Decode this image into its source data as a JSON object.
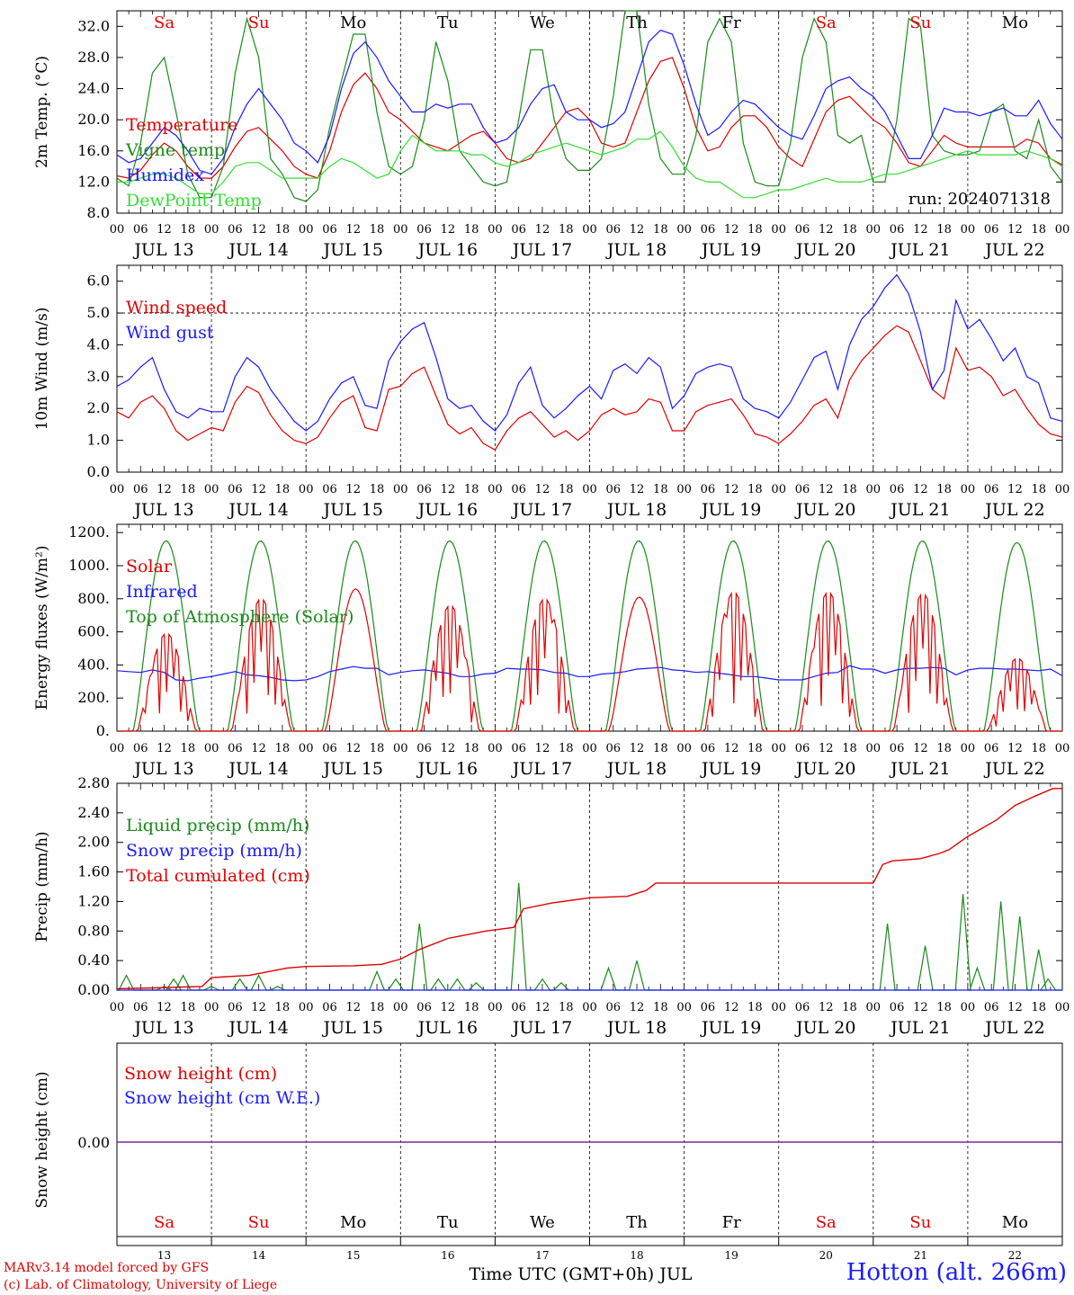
{
  "run_label": "run: 2024071318",
  "footer": {
    "model": "MARv3.14 model forced by GFS",
    "copyright": "(c) Lab. of Climatology, University of Liege",
    "station": "Hotton (alt. 266m)",
    "xlabel": "Time UTC (GMT+0h) JUL"
  },
  "hour_ticks": [
    "00",
    "06",
    "12",
    "18"
  ],
  "dates": [
    "JUL 13",
    "JUL 14",
    "JUL 15",
    "JUL 16",
    "JUL 17",
    "JUL 18",
    "JUL 19",
    "JUL 20",
    "JUL 21",
    "JUL 22"
  ],
  "day_numbers": [
    "13",
    "14",
    "15",
    "16",
    "17",
    "18",
    "19",
    "20",
    "21",
    "22"
  ],
  "weekdays": [
    "Sa",
    "Su",
    "Mo",
    "Tu",
    "We",
    "Th",
    "Fr",
    "Sa",
    "Su",
    "Mo"
  ],
  "weekday_colors": [
    "#e00000",
    "#e00000",
    "#000000",
    "#000000",
    "#000000",
    "#000000",
    "#000000",
    "#e00000",
    "#e00000",
    "#000000"
  ],
  "chart_data": [
    {
      "type": "line",
      "ylabel": "2m Temp. (°C)",
      "ylim": [
        8,
        34
      ],
      "yticks": [
        "8.0",
        "12.0",
        "16.0",
        "20.0",
        "24.0",
        "28.0",
        "32.0"
      ],
      "x": [
        0,
        0.125,
        0.25,
        0.375,
        0.5,
        0.625,
        0.75,
        0.875,
        1,
        1.125,
        1.25,
        1.375,
        1.5,
        1.625,
        1.75,
        1.875,
        2,
        2.125,
        2.25,
        2.375,
        2.5,
        2.625,
        2.75,
        2.875,
        3,
        3.125,
        3.25,
        3.375,
        3.5,
        3.625,
        3.75,
        3.875,
        4,
        4.125,
        4.25,
        4.375,
        4.5,
        4.625,
        4.75,
        4.875,
        5,
        5.125,
        5.25,
        5.375,
        5.5,
        5.625,
        5.75,
        5.875,
        6,
        6.125,
        6.25,
        6.375,
        6.5,
        6.625,
        6.75,
        6.875,
        7,
        7.125,
        7.25,
        7.375,
        7.5,
        7.625,
        7.75,
        7.875,
        8,
        8.125,
        8.25,
        8.375,
        8.5,
        8.625,
        8.75,
        8.875,
        9,
        9.125,
        9.25,
        9.375,
        9.5,
        9.625,
        9.75,
        9.875,
        10
      ],
      "series": [
        {
          "name": "Temperature",
          "color": "#e00000",
          "values": [
            12.8,
            12.5,
            13.5,
            15.5,
            17,
            16,
            14,
            12.5,
            12.5,
            14,
            16.5,
            18.5,
            19,
            17.5,
            16,
            14,
            13,
            12.5,
            16,
            21,
            24.5,
            26,
            24,
            21,
            20,
            18.5,
            17,
            16.5,
            16,
            17,
            18,
            18.5,
            17,
            15,
            14.5,
            15,
            17,
            19,
            21,
            21.5,
            20,
            17,
            16.5,
            17,
            21,
            25,
            27.5,
            28,
            24,
            19,
            16,
            16.5,
            19,
            20.5,
            20.5,
            19,
            16.5,
            15,
            14,
            17.5,
            21,
            22.5,
            23,
            21.5,
            20,
            19,
            17,
            14.5,
            14,
            16,
            18,
            17,
            16.5,
            16.5,
            16.5,
            16.5,
            16.5,
            17.5,
            17,
            15,
            14.2
          ]
        },
        {
          "name": "Vigne temp",
          "color": "#1a8a1a",
          "values": [
            12.5,
            11.5,
            17,
            26,
            28,
            21,
            13,
            10,
            10,
            14,
            26,
            33,
            28,
            15,
            13,
            10,
            9.5,
            11,
            19,
            25,
            31,
            31,
            21,
            14,
            13,
            14,
            20,
            30,
            25,
            16,
            14,
            12,
            11.5,
            12,
            20,
            29,
            29,
            20,
            15,
            13.5,
            13.5,
            15,
            23,
            34,
            34,
            22,
            15,
            13,
            13,
            18,
            30,
            33,
            30,
            17,
            12,
            11.5,
            11.5,
            17,
            28,
            33,
            30,
            18,
            17,
            18,
            12,
            12,
            20,
            33,
            32,
            18,
            16,
            15.5,
            15.5,
            16,
            21,
            22,
            16,
            15,
            20,
            14,
            12
          ]
        },
        {
          "name": "Humidex",
          "color": "#1a1aff",
          "values": [
            15.5,
            14.5,
            15,
            17,
            19,
            18,
            16,
            13.5,
            13,
            15,
            19,
            22,
            24,
            22,
            20,
            17,
            16,
            14.5,
            18,
            24,
            28.5,
            30,
            28,
            25,
            23,
            21,
            21,
            22,
            21.5,
            22,
            22,
            19,
            17,
            17.5,
            19,
            22,
            24,
            24.5,
            21,
            20,
            20,
            19,
            19.5,
            21,
            25.5,
            30,
            31.5,
            31,
            27,
            22,
            18,
            19,
            21,
            22.5,
            22,
            20.5,
            19,
            18,
            17.5,
            20.5,
            24,
            25,
            25.5,
            24,
            23,
            21,
            18,
            15,
            15,
            18,
            21.5,
            21,
            21,
            20.5,
            21,
            21.5,
            20.5,
            20.5,
            22.5,
            19.5,
            17.5
          ]
        },
        {
          "name": "DewPoint Temp",
          "color": "#33dd33",
          "values": [
            12,
            12,
            12.5,
            13,
            13,
            12.5,
            11.5,
            10.5,
            10.5,
            12,
            14,
            14.5,
            14.5,
            13.5,
            12.5,
            12.5,
            12.5,
            12.5,
            14,
            15,
            14.5,
            13.5,
            12.5,
            13,
            16,
            18,
            17,
            16,
            16,
            16,
            15.5,
            15.5,
            14.5,
            14,
            14.5,
            15.5,
            16,
            16.5,
            17,
            16.5,
            16,
            15.5,
            16,
            16.5,
            17.5,
            17.5,
            18.5,
            16.5,
            14,
            12.5,
            12,
            12,
            11,
            10,
            10,
            10.5,
            11,
            11,
            11.5,
            12,
            12.5,
            12,
            12,
            12,
            12.5,
            13,
            13,
            13.5,
            14,
            14.5,
            15,
            15.5,
            16,
            15.5,
            15.5,
            15.5,
            15.5,
            16,
            15.5,
            15,
            14
          ]
        }
      ]
    },
    {
      "type": "line",
      "ylabel": "10m Wind (m/s)",
      "ylim": [
        0,
        6.5
      ],
      "yticks": [
        "0.0",
        "1.0",
        "2.0",
        "3.0",
        "4.0",
        "5.0",
        "6.0"
      ],
      "x": [
        0,
        0.125,
        0.25,
        0.375,
        0.5,
        0.625,
        0.75,
        0.875,
        1,
        1.125,
        1.25,
        1.375,
        1.5,
        1.625,
        1.75,
        1.875,
        2,
        2.125,
        2.25,
        2.375,
        2.5,
        2.625,
        2.75,
        2.875,
        3,
        3.125,
        3.25,
        3.375,
        3.5,
        3.625,
        3.75,
        3.875,
        4,
        4.125,
        4.25,
        4.375,
        4.5,
        4.625,
        4.75,
        4.875,
        5,
        5.125,
        5.25,
        5.375,
        5.5,
        5.625,
        5.75,
        5.875,
        6,
        6.125,
        6.25,
        6.375,
        6.5,
        6.625,
        6.75,
        6.875,
        7,
        7.125,
        7.25,
        7.375,
        7.5,
        7.625,
        7.75,
        7.875,
        8,
        8.125,
        8.25,
        8.375,
        8.5,
        8.625,
        8.75,
        8.875,
        9,
        9.125,
        9.25,
        9.375,
        9.5,
        9.625,
        9.75,
        9.875,
        10
      ],
      "series": [
        {
          "name": "Wind speed",
          "color": "#e00000",
          "values": [
            1.9,
            1.7,
            2.2,
            2.4,
            2.0,
            1.3,
            1.0,
            1.2,
            1.4,
            1.3,
            2.2,
            2.7,
            2.5,
            1.8,
            1.3,
            1.0,
            0.9,
            1.1,
            1.7,
            2.2,
            2.4,
            1.4,
            1.3,
            2.6,
            2.7,
            3.1,
            3.3,
            2.4,
            1.5,
            1.2,
            1.4,
            0.9,
            0.7,
            1.3,
            1.7,
            1.9,
            1.5,
            1.1,
            1.3,
            1.0,
            1.3,
            1.8,
            2.0,
            1.8,
            1.9,
            2.3,
            2.2,
            1.3,
            1.3,
            1.9,
            2.1,
            2.2,
            2.3,
            1.8,
            1.2,
            1.1,
            0.9,
            1.2,
            1.6,
            2.1,
            2.3,
            1.7,
            2.9,
            3.5,
            3.9,
            4.3,
            4.6,
            4.4,
            3.5,
            2.6,
            2.3,
            3.9,
            3.2,
            3.3,
            3.0,
            2.4,
            2.6,
            2.0,
            1.5,
            1.2,
            1.1
          ]
        },
        {
          "name": "Wind gust",
          "color": "#1a1aff",
          "values": [
            2.7,
            2.9,
            3.3,
            3.6,
            2.6,
            1.9,
            1.7,
            2.0,
            1.9,
            1.9,
            3.0,
            3.6,
            3.3,
            2.6,
            2.1,
            1.6,
            1.3,
            1.6,
            2.3,
            2.8,
            3.0,
            2.1,
            2.0,
            3.5,
            4.1,
            4.5,
            4.7,
            3.6,
            2.3,
            2.0,
            2.1,
            1.6,
            1.3,
            1.8,
            2.8,
            3.3,
            2.1,
            1.7,
            2.0,
            2.4,
            2.7,
            2.3,
            3.2,
            3.4,
            3.1,
            3.6,
            3.3,
            2.0,
            2.4,
            3.1,
            3.3,
            3.4,
            3.3,
            2.3,
            2.0,
            1.9,
            1.7,
            2.2,
            2.9,
            3.6,
            3.8,
            2.6,
            4.0,
            4.8,
            5.2,
            5.8,
            6.2,
            5.6,
            4.4,
            2.6,
            3.2,
            5.4,
            4.5,
            4.8,
            4.2,
            3.5,
            3.9,
            3.0,
            2.8,
            1.7,
            1.6
          ]
        }
      ]
    },
    {
      "type": "line",
      "ylabel": "Energy fluxes (W/m²)",
      "ylim": [
        0,
        1250
      ],
      "yticks": [
        "0.",
        "200.",
        "400.",
        "600.",
        "800.",
        "1000.",
        "1200."
      ],
      "series": [
        {
          "name": "Solar",
          "color": "#e00000",
          "day_peaks": [
            590,
            800,
            860,
            760,
            800,
            810,
            840,
            840,
            830,
            440
          ]
        },
        {
          "name": "Infrared",
          "color": "#1a1aff",
          "values": [
            365,
            360,
            355,
            370,
            355,
            310,
            305,
            320,
            330,
            345,
            360,
            340,
            335,
            325,
            310,
            305,
            310,
            330,
            360,
            375,
            390,
            380,
            380,
            340,
            355,
            365,
            370,
            360,
            350,
            330,
            330,
            345,
            350,
            380,
            375,
            375,
            370,
            355,
            350,
            330,
            330,
            345,
            350,
            360,
            375,
            380,
            385,
            370,
            365,
            355,
            360,
            350,
            340,
            330,
            330,
            320,
            310,
            310,
            310,
            330,
            350,
            355,
            395,
            375,
            375,
            350,
            370,
            380,
            380,
            385,
            380,
            340,
            370,
            380,
            380,
            375,
            375,
            370,
            365,
            375,
            335
          ]
        },
        {
          "name": "Top of Atmosphere (Solar)",
          "color": "#1a8a1a",
          "day_peaks": [
            1150,
            1150,
            1150,
            1150,
            1150,
            1150,
            1150,
            1150,
            1150,
            1140
          ]
        }
      ]
    },
    {
      "type": "line",
      "ylabel": "Precip (mm/h)",
      "ylim": [
        0,
        2.8
      ],
      "yticks": [
        "0.00",
        "0.40",
        "0.80",
        "1.20",
        "1.60",
        "2.00",
        "2.40",
        "2.80"
      ],
      "series": [
        {
          "name": "Liquid precip (mm/h)",
          "color": "#1a8a1a",
          "events": [
            [
              0.1,
              0.2
            ],
            [
              0.5,
              0.05
            ],
            [
              0.6,
              0.15
            ],
            [
              0.7,
              0.2
            ],
            [
              1.0,
              0.05
            ],
            [
              1.3,
              0.15
            ],
            [
              1.5,
              0.2
            ],
            [
              1.7,
              0.05
            ],
            [
              2.75,
              0.25
            ],
            [
              2.95,
              0.15
            ],
            [
              3.2,
              0.9
            ],
            [
              3.4,
              0.15
            ],
            [
              3.6,
              0.15
            ],
            [
              3.8,
              0.1
            ],
            [
              4.25,
              1.45
            ],
            [
              4.5,
              0.15
            ],
            [
              4.7,
              0.1
            ],
            [
              5.2,
              0.3
            ],
            [
              5.5,
              0.4
            ],
            [
              8.15,
              0.9
            ],
            [
              8.55,
              0.6
            ],
            [
              8.95,
              1.3
            ],
            [
              9.1,
              0.3
            ],
            [
              9.35,
              1.2
            ],
            [
              9.55,
              1.0
            ],
            [
              9.75,
              0.55
            ],
            [
              9.85,
              0.15
            ]
          ]
        },
        {
          "name": "Snow precip (mm/h)",
          "color": "#1a1aff",
          "values": [
            0
          ]
        },
        {
          "name": "Total cumulated (cm)",
          "color": "#e00000",
          "x": [
            0,
            0.4,
            0.9,
            1.0,
            1.4,
            1.8,
            2.0,
            2.5,
            2.8,
            3.0,
            3.2,
            3.5,
            3.9,
            4.2,
            4.3,
            4.6,
            5.0,
            5.4,
            5.6,
            5.7,
            6.0,
            7.0,
            8.0,
            8.1,
            8.2,
            8.5,
            8.7,
            8.8,
            9.0,
            9.3,
            9.5,
            9.7,
            9.9,
            10.0
          ],
          "values": [
            0.02,
            0.03,
            0.05,
            0.17,
            0.2,
            0.3,
            0.32,
            0.33,
            0.35,
            0.42,
            0.55,
            0.7,
            0.8,
            0.85,
            1.1,
            1.18,
            1.25,
            1.27,
            1.35,
            1.45,
            1.45,
            1.45,
            1.45,
            1.7,
            1.75,
            1.78,
            1.85,
            1.9,
            2.08,
            2.3,
            2.5,
            2.62,
            2.73,
            2.73
          ]
        }
      ]
    },
    {
      "type": "line",
      "ylabel": "Snow height (cm)",
      "yticks": [
        "0.00"
      ],
      "series": [
        {
          "name": "Snow height (cm)",
          "color": "#e00000",
          "values": [
            0
          ]
        },
        {
          "name": "Snow height (cm W.E.)",
          "color": "#1a1aff",
          "values": [
            0
          ]
        }
      ]
    }
  ]
}
